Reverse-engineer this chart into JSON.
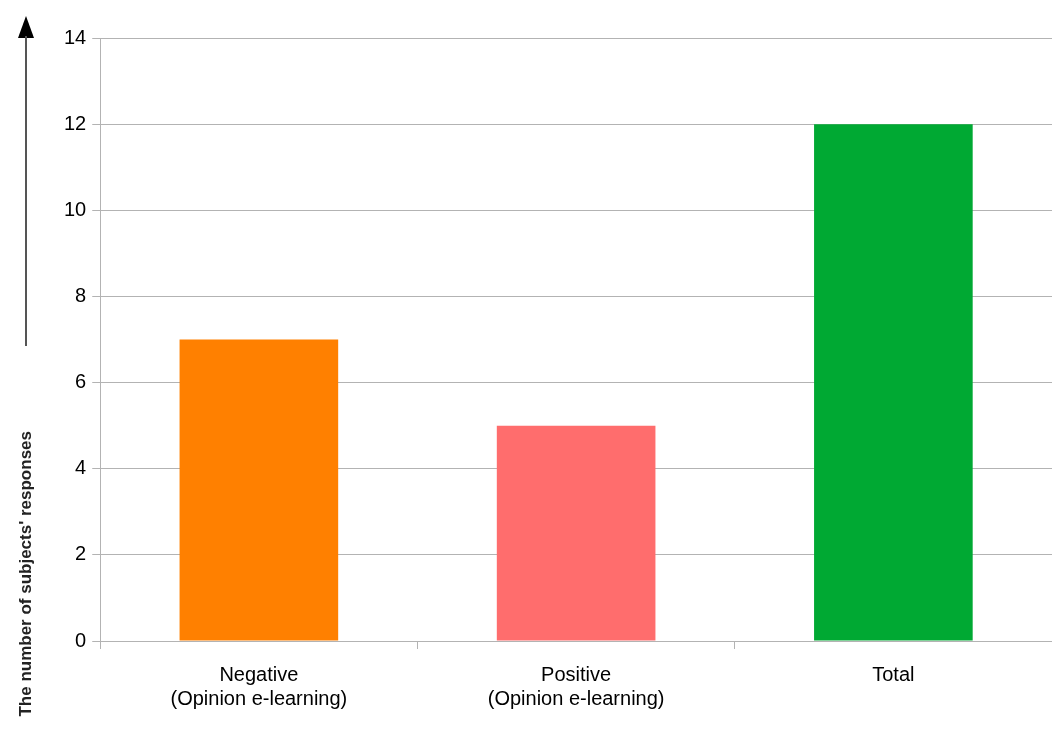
{
  "chart_data": {
    "type": "bar",
    "ylabel": "The number of subjects' responses",
    "categories": [
      "Negative\n(Opinion e-learning)",
      "Positive\n(Opinion e-learning)",
      "Total"
    ],
    "values": [
      7,
      5,
      12
    ],
    "colors": [
      "#ff8000",
      "#ff6d6d",
      "#00a933"
    ],
    "ylim": [
      0,
      14
    ],
    "yticks": [
      0,
      2,
      4,
      6,
      8,
      10,
      12,
      14
    ],
    "grid": "y"
  }
}
